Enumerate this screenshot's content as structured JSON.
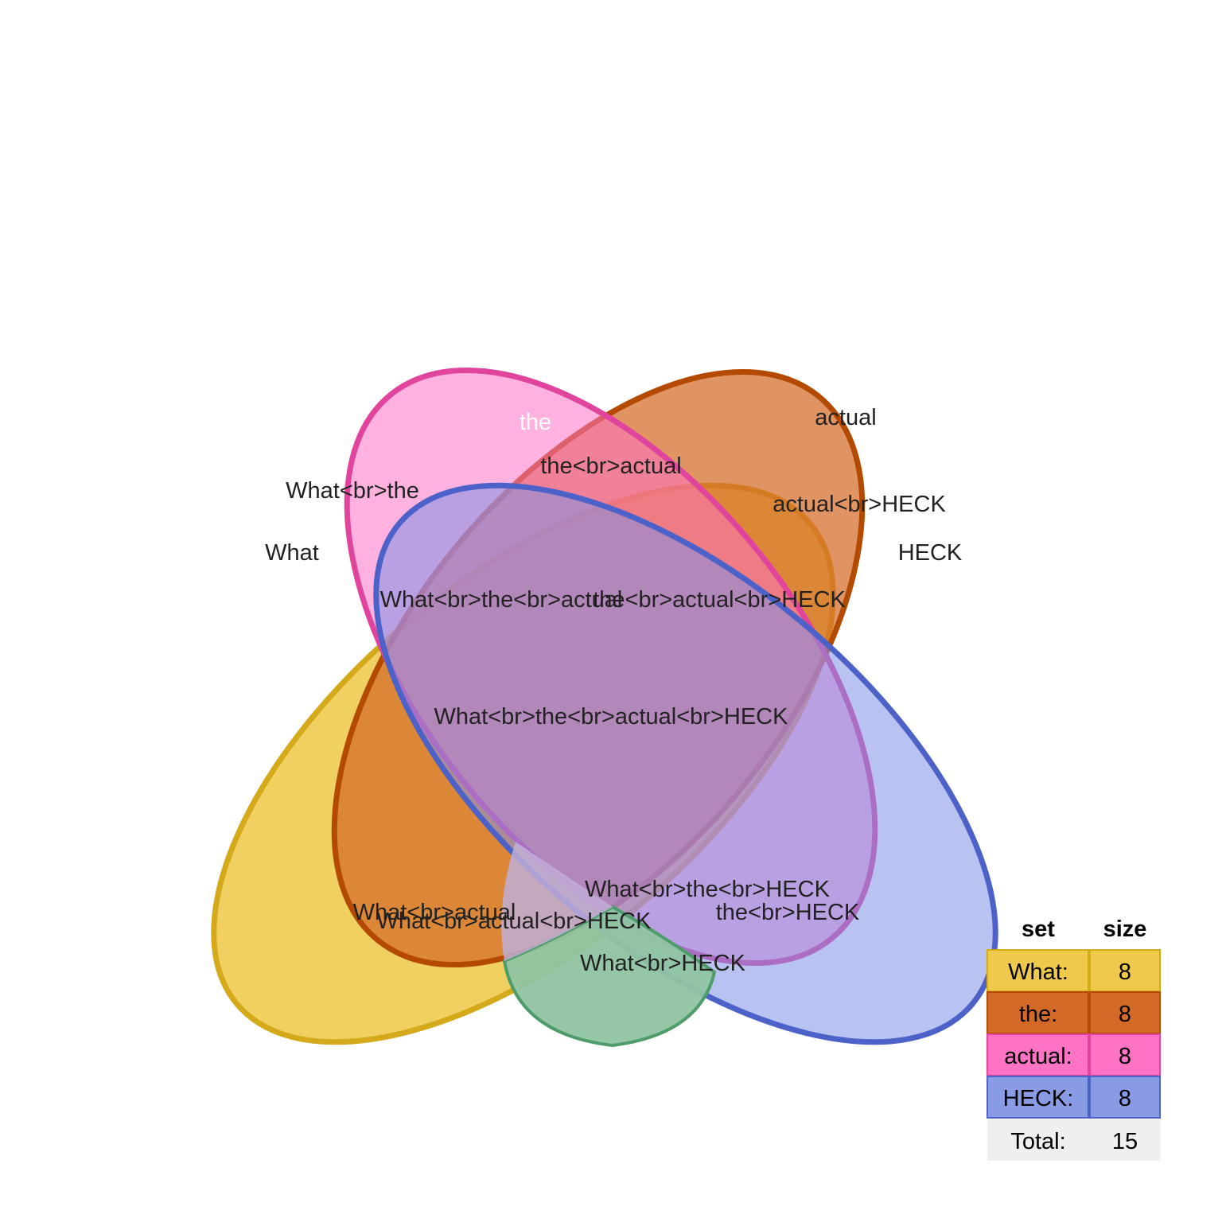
{
  "diagram": {
    "type": "venn",
    "sets": [
      {
        "name": "What",
        "fill": "#efc94c",
        "stroke": "#d4a91a"
      },
      {
        "name": "the",
        "fill": "#d46a27",
        "stroke": "#b34a00"
      },
      {
        "name": "actual",
        "fill": "#ff73c4",
        "stroke": "#e0449c"
      },
      {
        "name": "HECK",
        "fill": "#7f92e6",
        "stroke": "#4d62c9"
      }
    ],
    "regions": {
      "what": "What",
      "the": "the",
      "actual": "actual",
      "heck": "HECK",
      "what_the": "What<br>the",
      "the_actual": "the<br>actual",
      "actual_heck": "actual<br>HECK",
      "what_the_actual": "What<br>the<br>actual",
      "the_actual_heck": "the<br>actual<br>HECK",
      "all": "What<br>the<br>actual<br>HECK",
      "what_actual": "What<br>actual",
      "what_actual_heck": "What<br>actual<br>HECK",
      "what_the_heck": "What<br>the<br>HECK",
      "the_heck": "the<br>HECK",
      "what_heck": "What<br>HECK"
    },
    "overlap_fills": {
      "what_heck": "#8fc4a2",
      "what_actual_heck": "#c0aed6"
    }
  },
  "table": {
    "header_set": "set",
    "header_size": "size",
    "rows": [
      {
        "set": "What:",
        "size": "8",
        "fill": "#efc94c",
        "stroke": "#d4a91a"
      },
      {
        "set": "the:",
        "size": "8",
        "fill": "#d46a27",
        "stroke": "#b34a00"
      },
      {
        "set": "actual:",
        "size": "8",
        "fill": "#ff73c4",
        "stroke": "#e0449c"
      },
      {
        "set": "HECK:",
        "size": "8",
        "fill": "#8a9be6",
        "stroke": "#4d62c9"
      }
    ],
    "total_label": "Total:",
    "total_value": "15",
    "total_fill": "#efefef"
  }
}
